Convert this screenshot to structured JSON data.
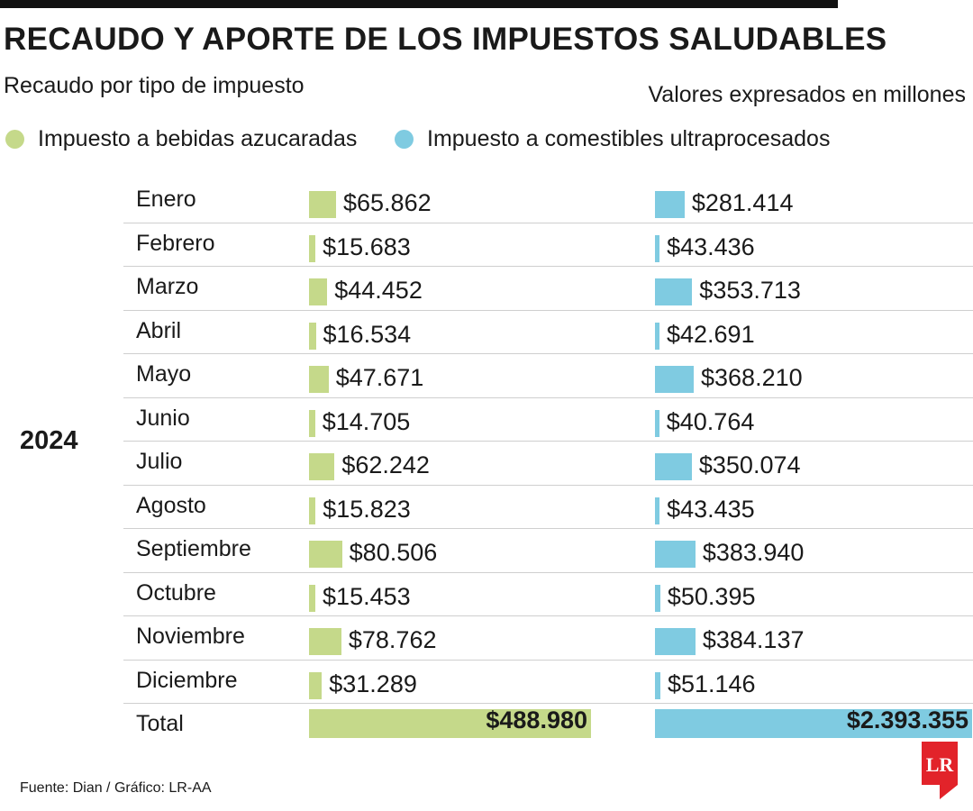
{
  "title": "RECAUDO Y APORTE DE LOS IMPUESTOS SALUDABLES",
  "subtitle": "Recaudo por tipo de impuesto",
  "units_note": "Valores expresados en millones",
  "source": "Fuente: Dian / Gráfico: LR-AA",
  "logo_text": "LR",
  "colors": {
    "bebidas": "#c5d98a",
    "comestibles": "#7fcbe1",
    "logo": "#e2232a"
  },
  "chart_data": {
    "type": "bar",
    "orientation": "horizontal",
    "year_label": "2024",
    "categories": [
      "Enero",
      "Febrero",
      "Marzo",
      "Abril",
      "Mayo",
      "Junio",
      "Julio",
      "Agosto",
      "Septiembre",
      "Octubre",
      "Noviembre",
      "Diciembre"
    ],
    "total_label": "Total",
    "series": [
      {
        "name": "Impuesto a bebidas azucaradas",
        "values": [
          65862,
          15683,
          44452,
          16534,
          47671,
          14705,
          62242,
          15823,
          80506,
          15453,
          78762,
          31289
        ],
        "labels": [
          "$65.862",
          "$15.683",
          "$44.452",
          "$16.534",
          "$47.671",
          "$14.705",
          "$62.242",
          "$15.823",
          "$80.506",
          "$15.453",
          "$78.762",
          "$31.289"
        ],
        "total": 488980,
        "total_label": "$488.980"
      },
      {
        "name": "Impuesto a comestibles ultraprocesados",
        "values": [
          281414,
          43436,
          353713,
          42691,
          368210,
          40764,
          350074,
          43435,
          383940,
          50395,
          384137,
          51146
        ],
        "labels": [
          "$281.414",
          "$43.436",
          "$353.713",
          "$42.691",
          "$368.210",
          "$40.764",
          "$350.074",
          "$43.435",
          "$383.940",
          "$50.395",
          "$384.137",
          "$51.146"
        ],
        "total": 2393355,
        "total_label": "$2.393.355"
      }
    ]
  }
}
